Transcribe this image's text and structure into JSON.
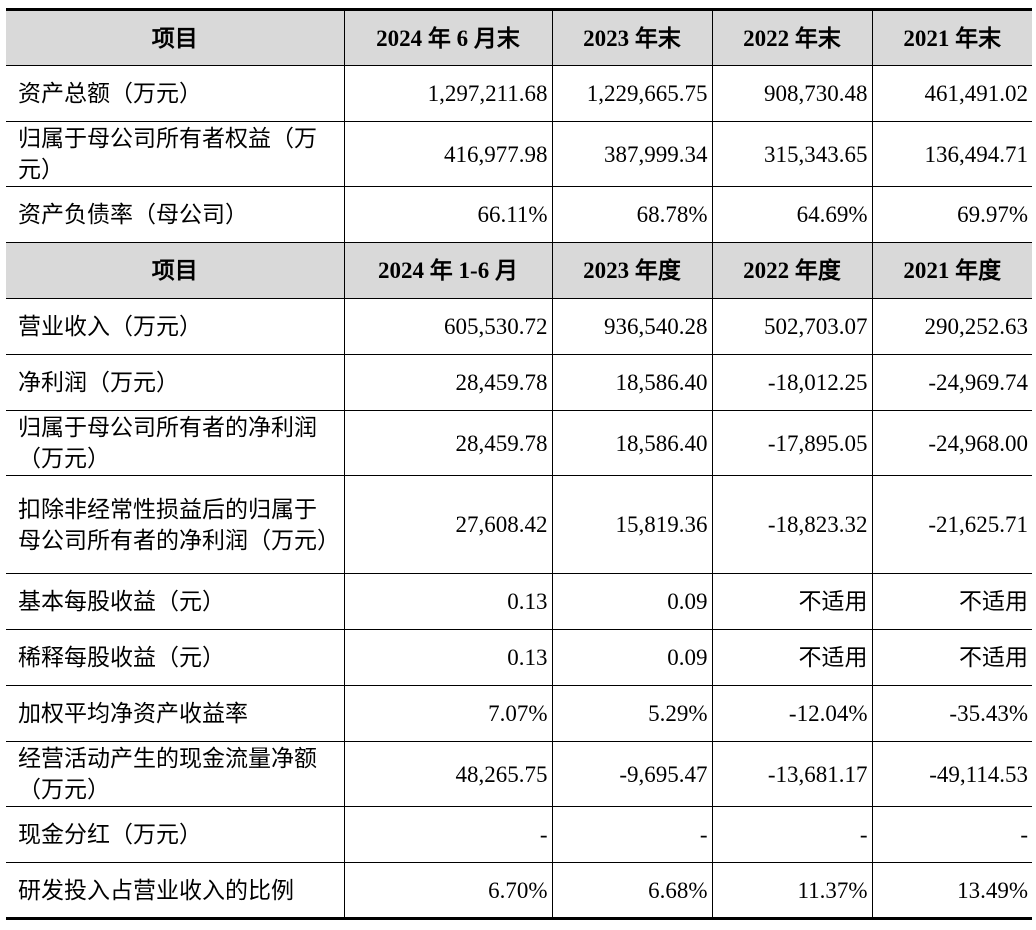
{
  "table": {
    "header1": [
      "项目",
      "2024 年 6 月末",
      "2023 年末",
      "2022 年末",
      "2021 年末"
    ],
    "section1": [
      {
        "label": "资产总额（万元）",
        "values": [
          "1,297,211.68",
          "1,229,665.75",
          "908,730.48",
          "461,491.02"
        ]
      },
      {
        "label": "归属于母公司所有者权益（万元）",
        "values": [
          "416,977.98",
          "387,999.34",
          "315,343.65",
          "136,494.71"
        ]
      },
      {
        "label": "资产负债率（母公司）",
        "values": [
          "66.11%",
          "68.78%",
          "64.69%",
          "69.97%"
        ]
      }
    ],
    "header2": [
      "项目",
      "2024 年 1-6 月",
      "2023 年度",
      "2022 年度",
      "2021 年度"
    ],
    "section2": [
      {
        "label": "营业收入（万元）",
        "values": [
          "605,530.72",
          "936,540.28",
          "502,703.07",
          "290,252.63"
        ]
      },
      {
        "label": "净利润（万元）",
        "values": [
          "28,459.78",
          "18,586.40",
          "-18,012.25",
          "-24,969.74"
        ]
      },
      {
        "label": "归属于母公司所有者的净利润（万元）",
        "values": [
          "28,459.78",
          "18,586.40",
          "-17,895.05",
          "-24,968.00"
        ]
      },
      {
        "label": "扣除非经常性损益后的归属于母公司所有者的净利润（万元）",
        "values": [
          "27,608.42",
          "15,819.36",
          "-18,823.32",
          "-21,625.71"
        ]
      },
      {
        "label": "基本每股收益（元）",
        "values": [
          "0.13",
          "0.09",
          "不适用",
          "不适用"
        ]
      },
      {
        "label": "稀释每股收益（元）",
        "values": [
          "0.13",
          "0.09",
          "不适用",
          "不适用"
        ]
      },
      {
        "label": "加权平均净资产收益率",
        "values": [
          "7.07%",
          "5.29%",
          "-12.04%",
          "-35.43%"
        ]
      },
      {
        "label": "经营活动产生的现金流量净额（万元）",
        "values": [
          "48,265.75",
          "-9,695.47",
          "-13,681.17",
          "-49,114.53"
        ]
      },
      {
        "label": "现金分红（万元）",
        "values": [
          "-",
          "-",
          "-",
          "-"
        ]
      },
      {
        "label": "研发投入占营业收入的比例",
        "values": [
          "6.70%",
          "6.68%",
          "11.37%",
          "13.49%"
        ]
      }
    ]
  }
}
